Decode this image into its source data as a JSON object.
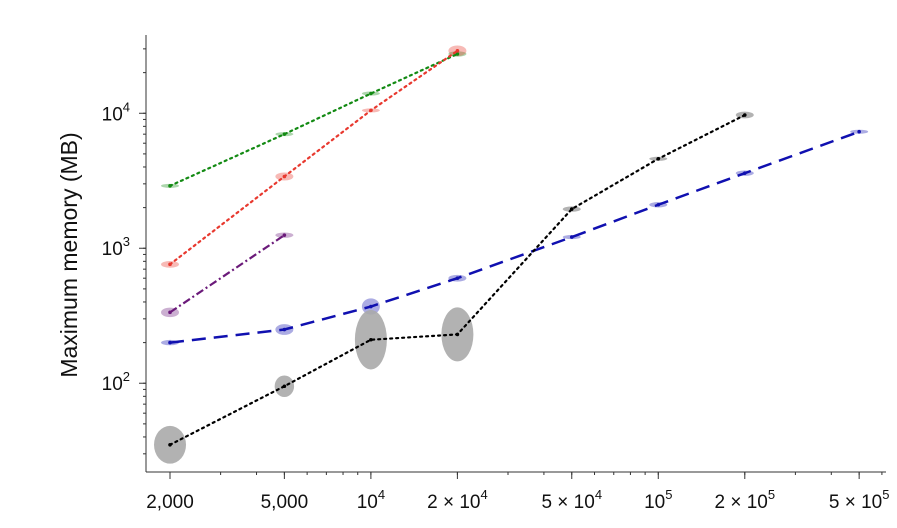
{
  "chart_data": {
    "type": "line",
    "title": "",
    "xlabel": "",
    "ylabel": "Maximum memory (MB)",
    "x_scale": "log",
    "y_scale": "log",
    "xlim": [
      1650,
      620000
    ],
    "ylim": [
      22,
      38000
    ],
    "grid": false,
    "x_ticks": [
      {
        "value": 2000,
        "base": "2,000",
        "exp": ""
      },
      {
        "value": 5000,
        "base": "5,000",
        "exp": ""
      },
      {
        "value": 10000,
        "base": "10",
        "exp": "4"
      },
      {
        "value": 20000,
        "base": "2 × 10",
        "exp": "4"
      },
      {
        "value": 50000,
        "base": "5 × 10",
        "exp": "4"
      },
      {
        "value": 100000,
        "base": "10",
        "exp": "5"
      },
      {
        "value": 200000,
        "base": "2 × 10",
        "exp": "5"
      },
      {
        "value": 500000,
        "base": "5 × 10",
        "exp": "5"
      }
    ],
    "y_ticks": [
      {
        "value": 100,
        "base": "10",
        "exp": "2"
      },
      {
        "value": 1000,
        "base": "10",
        "exp": "3"
      },
      {
        "value": 10000,
        "base": "10",
        "exp": "4"
      }
    ],
    "series": [
      {
        "color": "#138a13",
        "style": "dotted",
        "x": [
          2000,
          5000,
          10000,
          20000
        ],
        "y": [
          2900,
          7000,
          14000,
          27500
        ],
        "spread": [
          0.01,
          0.01,
          0.01,
          0.02
        ]
      },
      {
        "color": "#e8392f",
        "style": "dotted",
        "x": [
          2000,
          5000,
          10000,
          20000
        ],
        "y": [
          760,
          3400,
          10500,
          29000
        ],
        "spread": [
          0.025,
          0.03,
          0.015,
          0.04
        ]
      },
      {
        "color": "#6b1a7a",
        "style": "dashdot",
        "x": [
          2000,
          5000
        ],
        "y": [
          335,
          1250
        ],
        "spread": [
          0.035,
          0.02
        ]
      },
      {
        "color": "#1010b0",
        "style": "dashed",
        "x": [
          2000,
          5000,
          10000,
          20000,
          50000,
          100000,
          200000,
          500000
        ],
        "y": [
          200,
          250,
          370,
          600,
          1210,
          2100,
          3600,
          7300
        ],
        "spread": [
          0.02,
          0.04,
          0.06,
          0.025,
          0.015,
          0.02,
          0.02,
          0.015
        ]
      },
      {
        "color": "#000000",
        "style": "dotted",
        "x": [
          2000,
          5000,
          10000,
          20000,
          50000,
          100000,
          200000
        ],
        "y": [
          35,
          95,
          210,
          230,
          1950,
          4600,
          9700
        ],
        "spread": [
          0.14,
          0.08,
          0.22,
          0.2,
          0.02,
          0.015,
          0.025
        ]
      }
    ]
  }
}
